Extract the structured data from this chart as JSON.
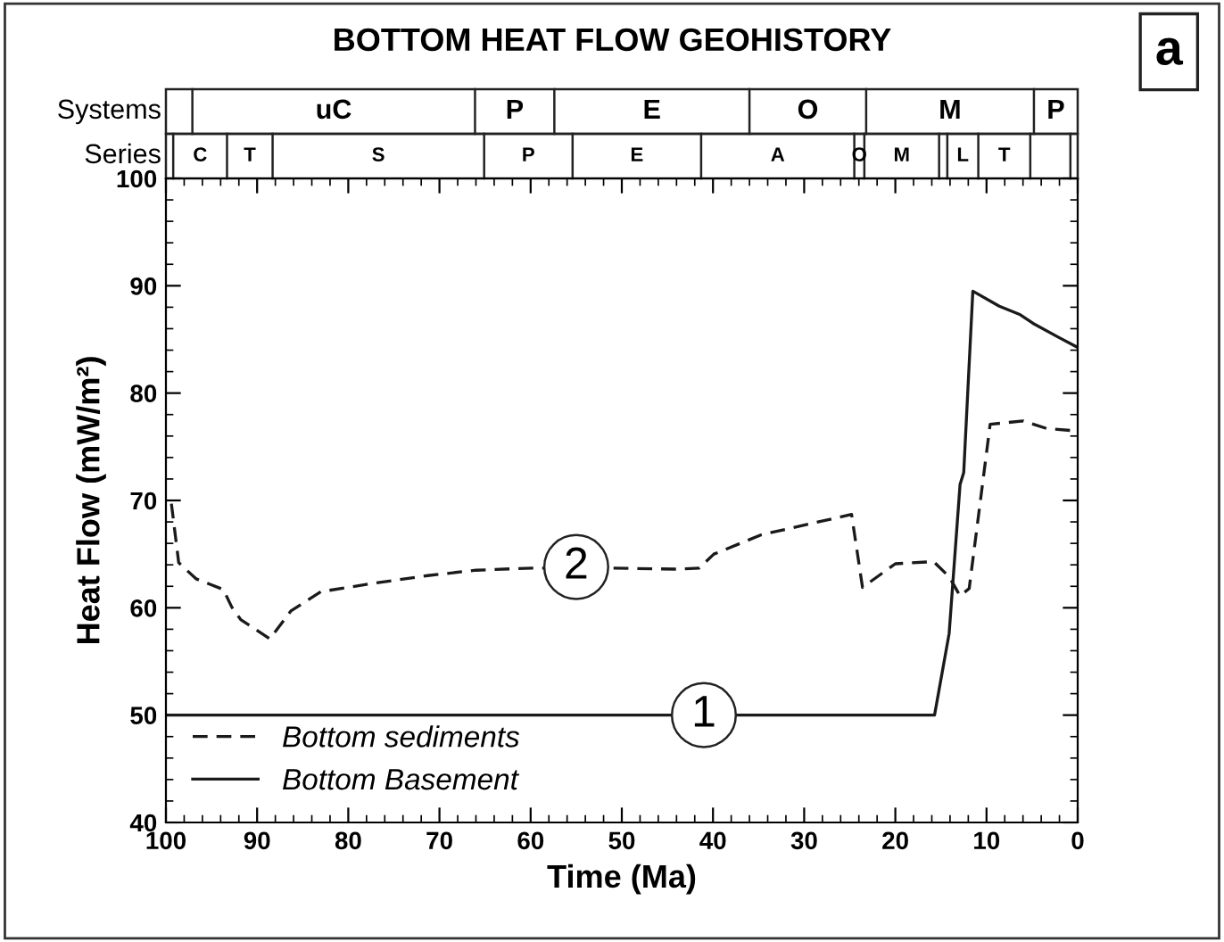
{
  "chart_data": {
    "type": "line",
    "title": "BOTTOM HEAT FLOW GEOHISTORY",
    "xlabel": "Time (Ma)",
    "ylabel": "Heat Flow (mW/m²)",
    "xlim": [
      100,
      0
    ],
    "xticks": [
      100,
      90,
      80,
      70,
      60,
      50,
      40,
      30,
      20,
      10,
      0
    ],
    "ylim": [
      40,
      100
    ],
    "yticks": [
      40,
      50,
      60,
      70,
      80,
      90,
      100
    ],
    "grid": false,
    "legend": "bottom left",
    "marker": "none",
    "series": [
      {
        "name": "Bottom sediments",
        "color": "#1a1a1a",
        "line_style": "dashed",
        "x": [
          99.4,
          98.6,
          96.7,
          93.7,
          92.8,
          91.8,
          88.6,
          86.3,
          83.0,
          77.1,
          71.3,
          66.0,
          59.8,
          51.7,
          43.8,
          41.5,
          39.9,
          34.7,
          24.8,
          23.6,
          20.0,
          15.8,
          14.1,
          12.9,
          11.9,
          9.6,
          6.0,
          3.4,
          0.45
        ],
        "values": [
          69.7,
          64.2,
          62.7,
          61.7,
          60.1,
          58.9,
          57.1,
          59.7,
          61.5,
          62.3,
          63.0,
          63.5,
          63.7,
          63.7,
          63.6,
          63.7,
          65.0,
          66.8,
          68.7,
          61.9,
          64.1,
          64.3,
          62.9,
          61.1,
          61.8,
          77.1,
          77.4,
          76.7,
          76.5
        ]
      },
      {
        "name": "Bottom Basement",
        "color": "#1a1a1a",
        "line_style": "solid",
        "x": [
          100,
          15.7,
          14.1,
          12.9,
          12.5,
          11.5,
          8.6,
          6.3,
          4.9,
          2.1,
          0.1
        ],
        "values": [
          50.0,
          50.0,
          57.6,
          71.5,
          72.6,
          89.5,
          88.1,
          87.3,
          86.5,
          85.2,
          84.3
        ]
      }
    ],
    "annotations": [
      "a",
      {
        "text": "1",
        "x": 41,
        "y": 50
      },
      {
        "text": "2",
        "x": 55,
        "y": 63.8
      },
      "Systems",
      "uC",
      "P",
      "E",
      "O",
      "M",
      "P",
      "Series",
      "C",
      "T",
      "S",
      "P",
      "E",
      "A",
      "O",
      "M",
      "L",
      "T"
    ]
  }
}
